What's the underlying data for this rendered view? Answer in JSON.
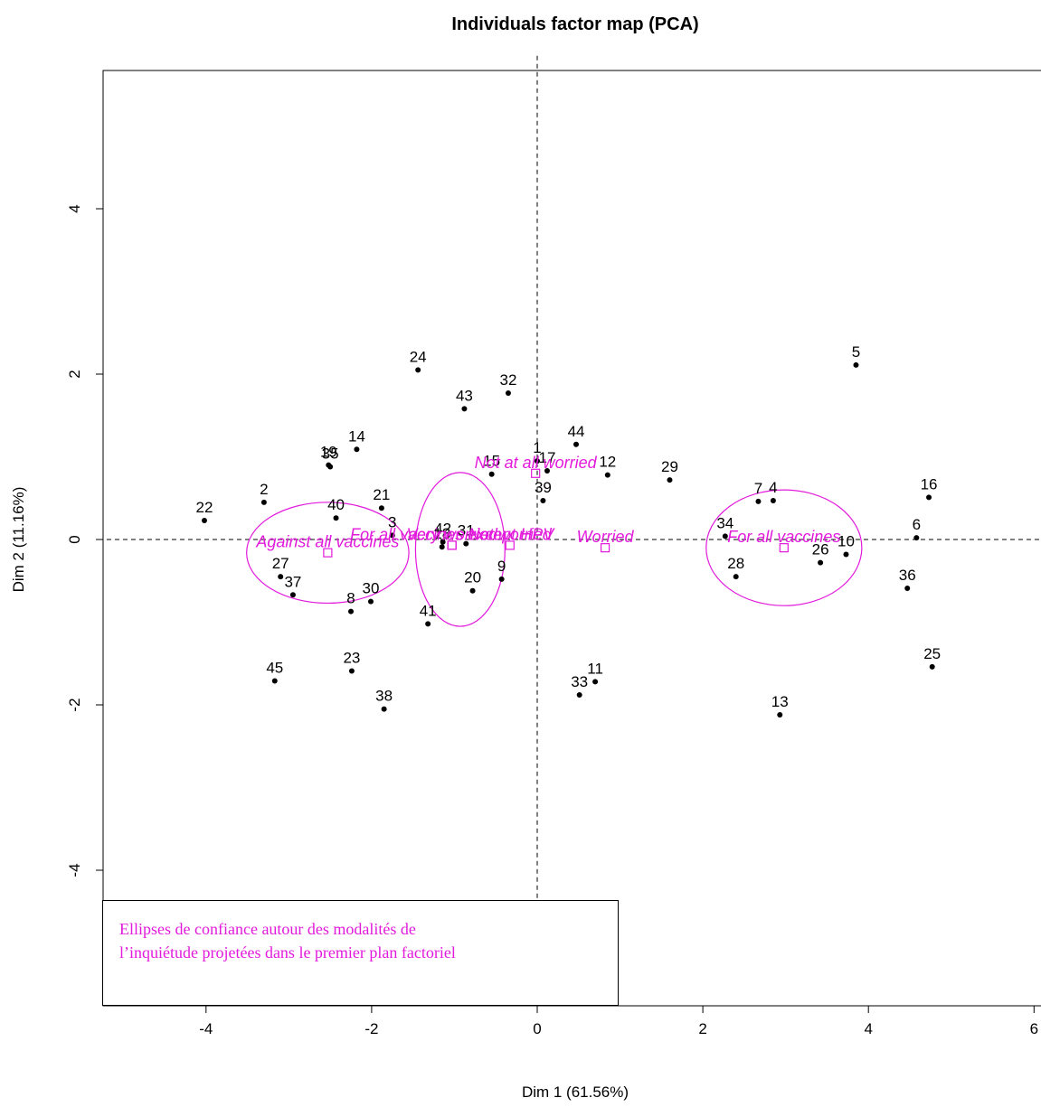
{
  "chart_data": {
    "type": "scatter",
    "title": "Individuals factor map (PCA)",
    "xlabel": "Dim 1 (61.56%)",
    "ylabel": "Dim 2 (11.16%)",
    "xlim": [
      -5.2,
      6.1
    ],
    "ylim": [
      -5.65,
      5.85
    ],
    "xticks": [
      -4,
      -2,
      0,
      2,
      4,
      6
    ],
    "yticks": [
      -4,
      -2,
      0,
      2,
      4
    ],
    "xtick_labels": [
      "-4",
      "-2",
      "0",
      "2",
      "4",
      "6"
    ],
    "ytick_labels": [
      "-4",
      "-2",
      "0",
      "2",
      "4"
    ],
    "point_color": "#000000",
    "category_color": "#e21adc",
    "individuals": [
      {
        "label": "1",
        "x": 0.0,
        "y": 0.95
      },
      {
        "label": "2",
        "x": -3.3,
        "y": 0.45
      },
      {
        "label": "3",
        "x": -1.75,
        "y": 0.05
      },
      {
        "label": "4",
        "x": 2.85,
        "y": 0.47
      },
      {
        "label": "5",
        "x": 3.85,
        "y": 2.11
      },
      {
        "label": "6",
        "x": 4.58,
        "y": 0.02
      },
      {
        "label": "7",
        "x": 2.67,
        "y": 0.46
      },
      {
        "label": "8",
        "x": -2.25,
        "y": -0.87
      },
      {
        "label": "9",
        "x": -0.43,
        "y": -0.48
      },
      {
        "label": "10",
        "x": 3.73,
        "y": -0.18
      },
      {
        "label": "11",
        "x": 0.7,
        "y": -1.72
      },
      {
        "label": "12",
        "x": 0.85,
        "y": 0.78
      },
      {
        "label": "13",
        "x": 2.93,
        "y": -2.12
      },
      {
        "label": "14",
        "x": -2.18,
        "y": 1.09
      },
      {
        "label": "15",
        "x": -0.55,
        "y": 0.79
      },
      {
        "label": "16",
        "x": 4.73,
        "y": 0.51
      },
      {
        "label": "17",
        "x": 0.12,
        "y": 0.83
      },
      {
        "label": "18",
        "x": -1.15,
        "y": -0.09
      },
      {
        "label": "19",
        "x": -2.52,
        "y": 0.9
      },
      {
        "label": "20",
        "x": -0.78,
        "y": -0.62
      },
      {
        "label": "21",
        "x": -1.88,
        "y": 0.38
      },
      {
        "label": "22",
        "x": -4.02,
        "y": 0.23
      },
      {
        "label": "23",
        "x": -2.24,
        "y": -1.59
      },
      {
        "label": "24",
        "x": -1.44,
        "y": 2.05
      },
      {
        "label": "25",
        "x": 4.77,
        "y": -1.54
      },
      {
        "label": "26",
        "x": 3.42,
        "y": -0.28
      },
      {
        "label": "27",
        "x": -3.1,
        "y": -0.45
      },
      {
        "label": "28",
        "x": 2.4,
        "y": -0.45
      },
      {
        "label": "29",
        "x": 1.6,
        "y": 0.72
      },
      {
        "label": "30",
        "x": -2.01,
        "y": -0.75
      },
      {
        "label": "31",
        "x": -0.86,
        "y": -0.05
      },
      {
        "label": "32",
        "x": -0.35,
        "y": 1.77
      },
      {
        "label": "33",
        "x": 0.51,
        "y": -1.88
      },
      {
        "label": "34",
        "x": 2.27,
        "y": 0.04
      },
      {
        "label": "35",
        "x": -2.5,
        "y": 0.88
      },
      {
        "label": "36",
        "x": 4.47,
        "y": -0.59
      },
      {
        "label": "37",
        "x": -2.95,
        "y": -0.67
      },
      {
        "label": "38",
        "x": -1.85,
        "y": -2.05
      },
      {
        "label": "39",
        "x": 0.07,
        "y": 0.47
      },
      {
        "label": "40",
        "x": -2.43,
        "y": 0.26
      },
      {
        "label": "41",
        "x": -1.32,
        "y": -1.02
      },
      {
        "label": "42",
        "x": -1.14,
        "y": -0.03
      },
      {
        "label": "43",
        "x": -0.88,
        "y": 1.58
      },
      {
        "label": "44",
        "x": 0.47,
        "y": 1.15
      },
      {
        "label": "45",
        "x": -3.17,
        "y": -1.71
      }
    ],
    "categories": [
      {
        "label": "Against all vaccines",
        "x": -2.53,
        "y": -0.16
      },
      {
        "label": "For all vaccines except HPV",
        "x": -1.03,
        "y": -0.07
      },
      {
        "label": "Very worried",
        "x": -1.03,
        "y": -0.07
      },
      {
        "label": "Not worried",
        "x": -0.33,
        "y": -0.07
      },
      {
        "label": "Not at all worried",
        "x": -0.02,
        "y": 0.8
      },
      {
        "label": "Worried",
        "x": 0.82,
        "y": -0.1
      },
      {
        "label": "For all vaccines",
        "x": 2.98,
        "y": -0.1
      }
    ],
    "ellipses": [
      {
        "cx": -2.53,
        "cy": -0.16,
        "rx": 0.98,
        "ry": 0.61
      },
      {
        "cx": -0.93,
        "cy": -0.12,
        "rx": 0.54,
        "ry": 0.93
      },
      {
        "cx": 2.98,
        "cy": -0.1,
        "rx": 0.94,
        "ry": 0.7
      }
    ]
  },
  "note": {
    "line1": "Ellipses de  confiance autour des modalités de",
    "line2": "l’inquiétude projetées dans le premier plan factoriel"
  }
}
